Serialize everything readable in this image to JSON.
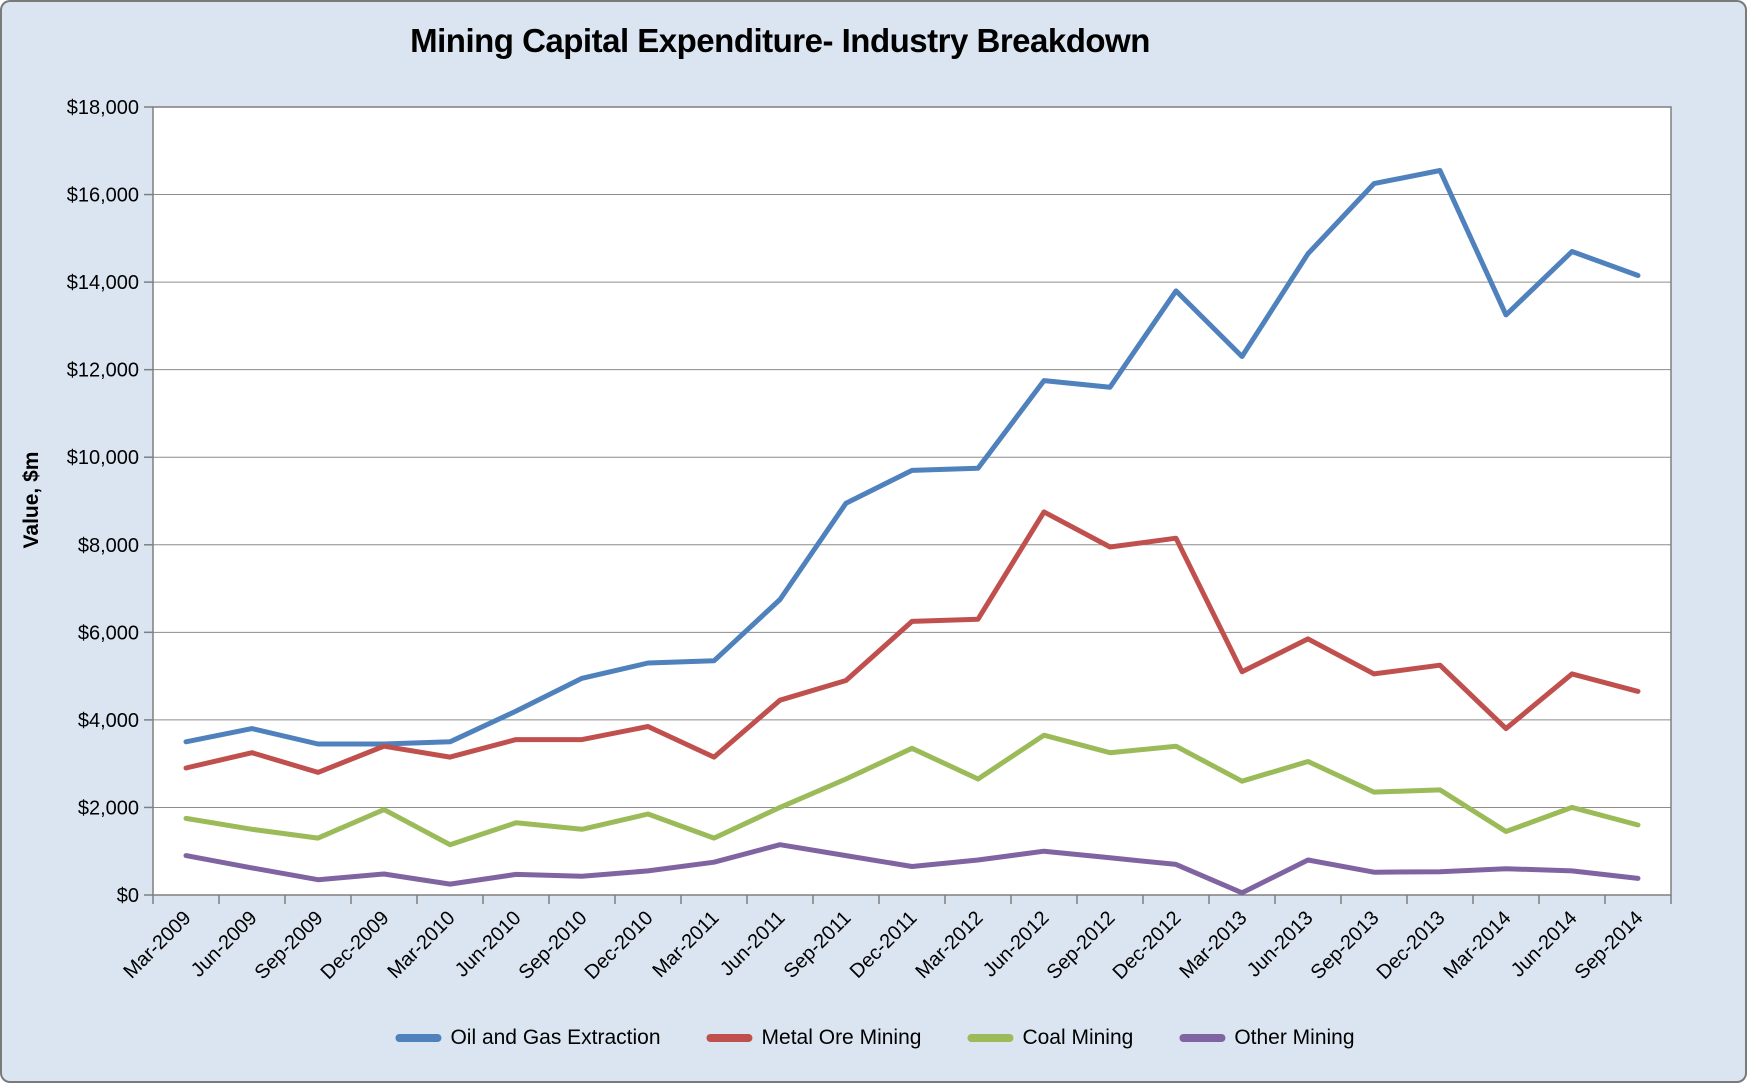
{
  "title": "Mining Capital Expenditure- Industry Breakdown",
  "y_axis_title": "Value, $m",
  "colors": {
    "background": "#dbe5f1",
    "plot_background": "#ffffff",
    "gridline": "#8c8c8c",
    "axis": "#7f7f7f",
    "text": "#000000"
  },
  "chart_data": {
    "type": "line",
    "title": "Mining Capital Expenditure- Industry Breakdown",
    "xlabel": "",
    "ylabel": "Value, $m",
    "ylim": [
      0,
      18000
    ],
    "ytick_step": 2000,
    "ytick_format": "$#,##0",
    "grid": true,
    "legend_position": "bottom",
    "categories": [
      "Mar-2009",
      "Jun-2009",
      "Sep-2009",
      "Dec-2009",
      "Mar-2010",
      "Jun-2010",
      "Sep-2010",
      "Dec-2010",
      "Mar-2011",
      "Jun-2011",
      "Sep-2011",
      "Dec-2011",
      "Mar-2012",
      "Jun-2012",
      "Sep-2012",
      "Dec-2012",
      "Mar-2013",
      "Jun-2013",
      "Sep-2013",
      "Dec-2013",
      "Mar-2014",
      "Jun-2014",
      "Sep-2014"
    ],
    "series": [
      {
        "name": "Oil and Gas Extraction",
        "color": "#4f81bd",
        "values": [
          3500,
          3800,
          3450,
          3450,
          3500,
          4200,
          4950,
          5300,
          5350,
          6750,
          8950,
          9700,
          9750,
          11750,
          11600,
          13800,
          12300,
          14650,
          16250,
          16550,
          13250,
          14700,
          14150
        ]
      },
      {
        "name": "Metal Ore Mining",
        "color": "#c0504d",
        "values": [
          2900,
          3250,
          2800,
          3400,
          3150,
          3550,
          3550,
          3850,
          3150,
          4450,
          4900,
          6250,
          6300,
          8750,
          7950,
          8150,
          5100,
          5850,
          5050,
          5250,
          3800,
          5050,
          4650
        ]
      },
      {
        "name": "Coal Mining",
        "color": "#9bbb59",
        "values": [
          1750,
          1500,
          1300,
          1950,
          1150,
          1650,
          1500,
          1850,
          1300,
          2000,
          2650,
          3350,
          2650,
          3650,
          3250,
          3400,
          2600,
          3050,
          2350,
          2400,
          1450,
          2000,
          1600
        ]
      },
      {
        "name": "Other Mining",
        "color": "#8064a2",
        "values": [
          900,
          620,
          350,
          480,
          250,
          470,
          430,
          550,
          750,
          1150,
          900,
          650,
          800,
          1000,
          850,
          700,
          50,
          800,
          520,
          530,
          600,
          550,
          380
        ]
      }
    ]
  }
}
